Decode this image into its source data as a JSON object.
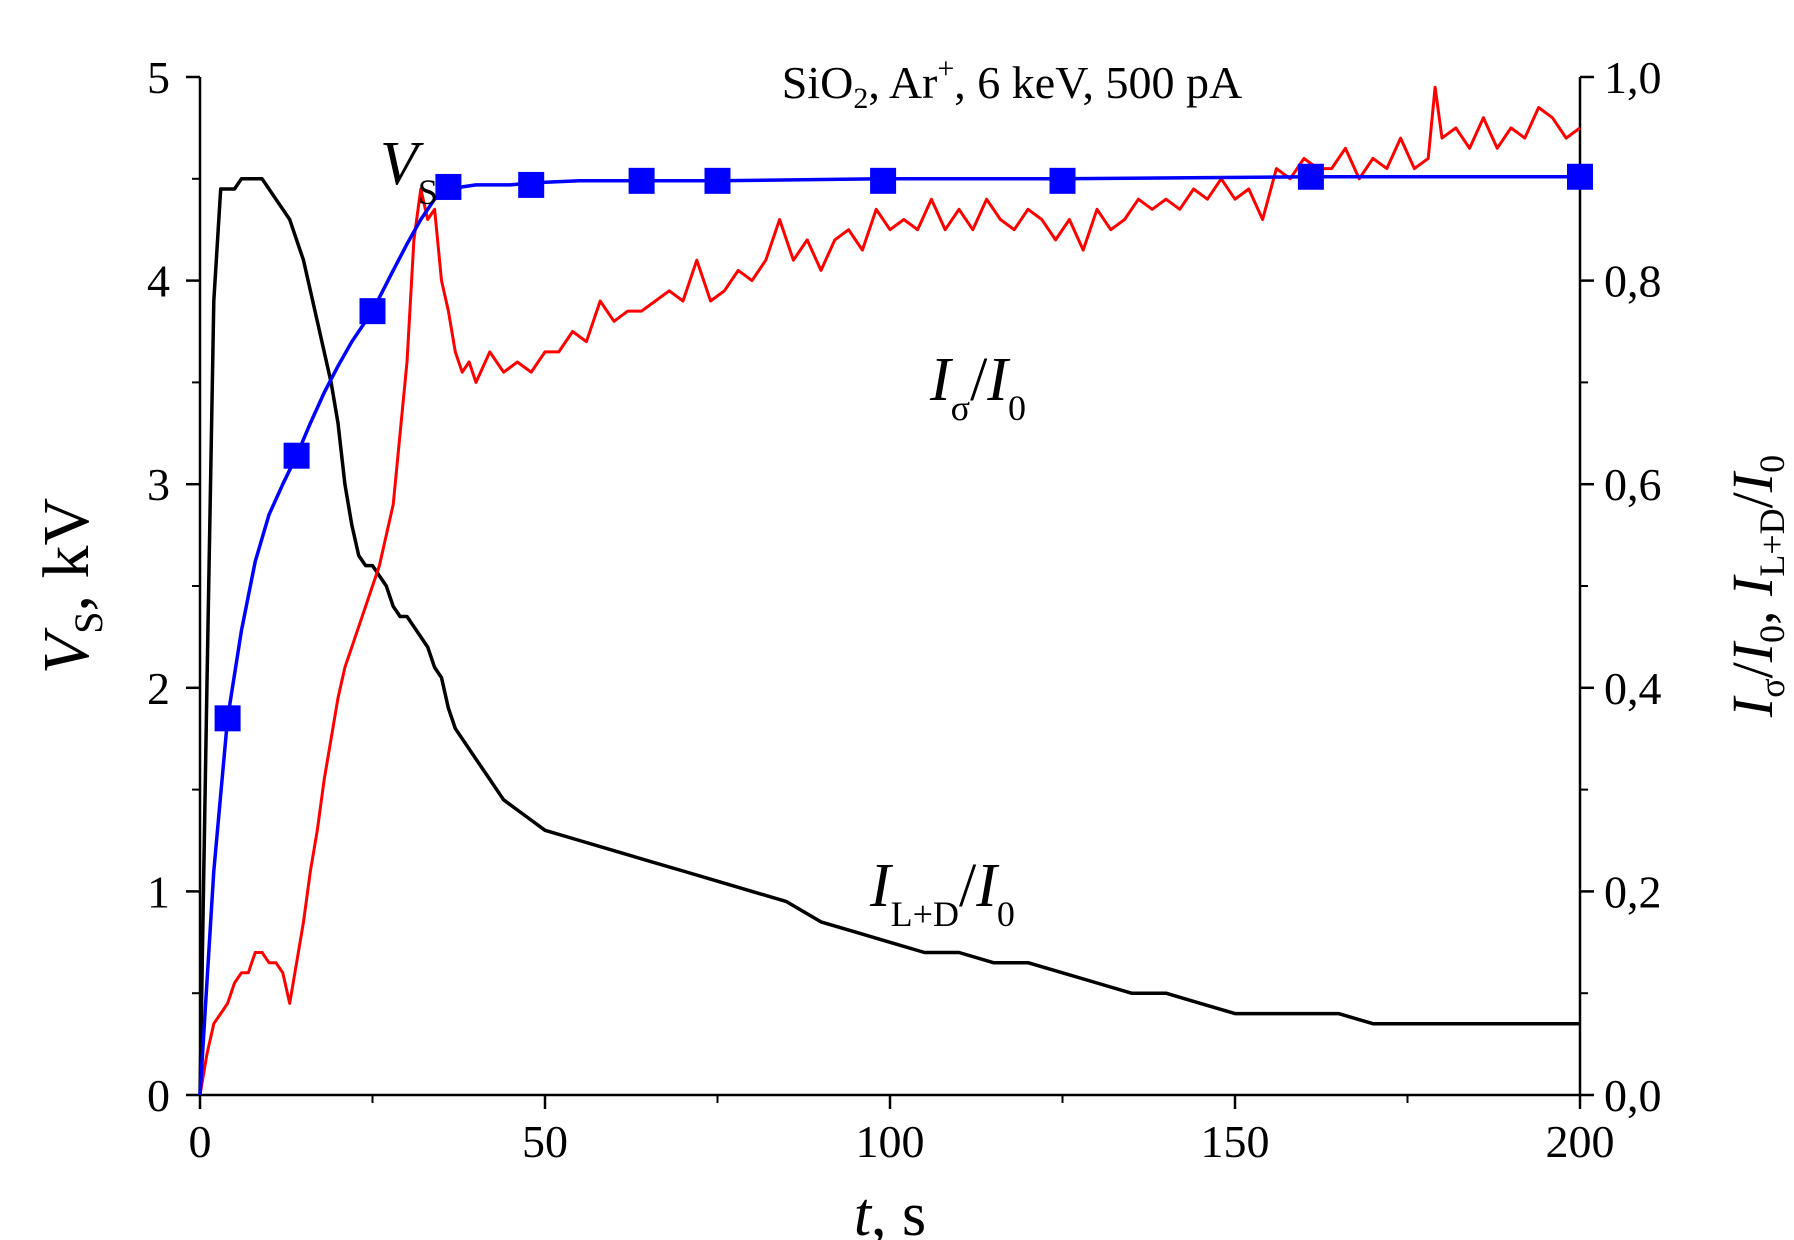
{
  "chart_data": {
    "type": "line",
    "title": {
      "base": "SiO",
      "sub": "2",
      "mid": ", Ar",
      "sup": "+",
      "rest": ", 6 keV, 500 pA"
    },
    "x_axis": {
      "label_main": "t",
      "label_rest": ", s",
      "range": [
        0,
        200
      ],
      "ticks": [
        0,
        50,
        100,
        150,
        200
      ],
      "tick_labels": [
        "0",
        "50",
        "100",
        "150",
        "200"
      ]
    },
    "y_left_axis": {
      "label_main": "V",
      "label_sub": "S",
      "label_rest": ", kV",
      "range": [
        0,
        5
      ],
      "ticks": [
        0,
        1,
        2,
        3,
        4,
        5
      ],
      "tick_labels": [
        "0",
        "1",
        "2",
        "3",
        "4",
        "5"
      ]
    },
    "y_right_axis": {
      "label": {
        "i1": "I",
        "s1": "σ",
        "slash1": "/",
        "i2": "I",
        "s2": "0",
        "comma": ", ",
        "i3": "I",
        "s3": "L+D",
        "slash2": "/",
        "i4": "I",
        "s4": "0"
      },
      "range": [
        0,
        1.0
      ],
      "ticks": [
        0,
        0.2,
        0.4,
        0.6,
        0.8,
        1.0
      ],
      "tick_labels": [
        "0,0",
        "0,2",
        "0,4",
        "0,6",
        "0,8",
        "1,0"
      ]
    },
    "series": [
      {
        "label": {
          "main": "V",
          "sub": "S"
        },
        "axis": "left",
        "color": "#0000ff",
        "marker": "square",
        "markers_x": [
          4,
          14,
          25,
          36,
          48,
          64,
          75,
          99,
          125,
          161,
          200
        ],
        "markers_y": [
          1.85,
          3.14,
          3.85,
          4.46,
          4.47,
          4.49,
          4.49,
          4.49,
          4.49,
          4.51,
          4.51
        ],
        "curve_x": [
          0,
          2,
          4,
          6,
          8,
          10,
          12,
          14,
          16,
          18,
          20,
          22,
          25,
          28,
          30,
          32,
          34,
          36,
          38,
          40,
          42,
          45,
          48,
          55,
          64,
          75,
          99,
          125,
          161,
          200
        ],
        "curve_y": [
          0.0,
          1.1,
          1.85,
          2.28,
          2.62,
          2.85,
          3.0,
          3.14,
          3.3,
          3.45,
          3.58,
          3.7,
          3.85,
          4.05,
          4.18,
          4.3,
          4.4,
          4.44,
          4.46,
          4.47,
          4.47,
          4.47,
          4.48,
          4.49,
          4.49,
          4.49,
          4.5,
          4.5,
          4.51,
          4.51
        ]
      },
      {
        "label": {
          "main": "I",
          "sub": "σ",
          "slash": "/",
          "main2": "I",
          "sub2": "0"
        },
        "axis": "right",
        "color": "#ff0000",
        "x": [
          0,
          1,
          2,
          3,
          4,
          5,
          6,
          7,
          8,
          9,
          10,
          11,
          12,
          13,
          14,
          15,
          16,
          17,
          18,
          19,
          20,
          21,
          22,
          23,
          24,
          25,
          26,
          27,
          28,
          29,
          30,
          31,
          32,
          33,
          34,
          35,
          36,
          37,
          38,
          39,
          40,
          42,
          44,
          46,
          48,
          50,
          52,
          54,
          56,
          58,
          60,
          62,
          64,
          66,
          68,
          70,
          72,
          74,
          76,
          78,
          80,
          82,
          84,
          86,
          88,
          90,
          92,
          94,
          96,
          98,
          100,
          102,
          104,
          106,
          108,
          110,
          112,
          114,
          116,
          118,
          120,
          122,
          124,
          126,
          128,
          130,
          132,
          134,
          136,
          138,
          140,
          142,
          144,
          146,
          148,
          150,
          152,
          154,
          156,
          158,
          160,
          162,
          164,
          166,
          168,
          170,
          172,
          174,
          176,
          178,
          179,
          180,
          182,
          184,
          186,
          188,
          190,
          192,
          194,
          196,
          198,
          200
        ],
        "y": [
          0.0,
          0.04,
          0.07,
          0.08,
          0.09,
          0.11,
          0.12,
          0.12,
          0.14,
          0.14,
          0.13,
          0.13,
          0.12,
          0.09,
          0.13,
          0.17,
          0.22,
          0.26,
          0.31,
          0.35,
          0.39,
          0.42,
          0.44,
          0.46,
          0.48,
          0.5,
          0.52,
          0.55,
          0.58,
          0.65,
          0.72,
          0.84,
          0.89,
          0.86,
          0.87,
          0.8,
          0.77,
          0.73,
          0.71,
          0.72,
          0.7,
          0.73,
          0.71,
          0.72,
          0.71,
          0.73,
          0.73,
          0.75,
          0.74,
          0.78,
          0.76,
          0.77,
          0.77,
          0.78,
          0.79,
          0.78,
          0.82,
          0.78,
          0.79,
          0.81,
          0.8,
          0.82,
          0.86,
          0.82,
          0.84,
          0.81,
          0.84,
          0.85,
          0.83,
          0.87,
          0.85,
          0.86,
          0.85,
          0.88,
          0.85,
          0.87,
          0.85,
          0.88,
          0.86,
          0.85,
          0.87,
          0.86,
          0.84,
          0.86,
          0.83,
          0.87,
          0.85,
          0.86,
          0.88,
          0.87,
          0.88,
          0.87,
          0.89,
          0.88,
          0.9,
          0.88,
          0.89,
          0.86,
          0.91,
          0.9,
          0.92,
          0.91,
          0.91,
          0.93,
          0.9,
          0.92,
          0.91,
          0.94,
          0.91,
          0.92,
          0.99,
          0.94,
          0.95,
          0.93,
          0.96,
          0.93,
          0.95,
          0.94,
          0.97,
          0.96,
          0.94,
          0.95
        ]
      },
      {
        "label": {
          "main": "I",
          "sub": "L+D",
          "slash": "/",
          "main2": "I",
          "sub2": "0"
        },
        "axis": "right",
        "color": "#000000",
        "x": [
          0,
          1,
          2,
          3,
          4,
          5,
          6,
          7,
          8,
          9,
          10,
          11,
          12,
          13,
          14,
          15,
          16,
          17,
          18,
          19,
          20,
          21,
          22,
          23,
          24,
          25,
          26,
          27,
          28,
          29,
          30,
          31,
          32,
          33,
          34,
          35,
          36,
          37,
          38,
          40,
          42,
          44,
          46,
          48,
          50,
          55,
          60,
          65,
          70,
          75,
          80,
          85,
          90,
          95,
          100,
          105,
          110,
          115,
          120,
          125,
          130,
          135,
          140,
          145,
          150,
          155,
          160,
          165,
          170,
          175,
          180,
          185,
          190,
          195,
          200
        ],
        "y": [
          0.0,
          0.4,
          0.78,
          0.89,
          0.89,
          0.89,
          0.9,
          0.9,
          0.9,
          0.9,
          0.89,
          0.88,
          0.87,
          0.86,
          0.84,
          0.82,
          0.79,
          0.76,
          0.73,
          0.7,
          0.66,
          0.6,
          0.56,
          0.53,
          0.52,
          0.52,
          0.51,
          0.5,
          0.48,
          0.47,
          0.47,
          0.46,
          0.45,
          0.44,
          0.42,
          0.41,
          0.38,
          0.36,
          0.35,
          0.33,
          0.31,
          0.29,
          0.28,
          0.27,
          0.26,
          0.25,
          0.24,
          0.23,
          0.22,
          0.21,
          0.2,
          0.19,
          0.17,
          0.16,
          0.15,
          0.14,
          0.14,
          0.13,
          0.13,
          0.12,
          0.11,
          0.1,
          0.1,
          0.09,
          0.08,
          0.08,
          0.08,
          0.08,
          0.07,
          0.07,
          0.07,
          0.07,
          0.07,
          0.07,
          0.07
        ]
      }
    ]
  }
}
